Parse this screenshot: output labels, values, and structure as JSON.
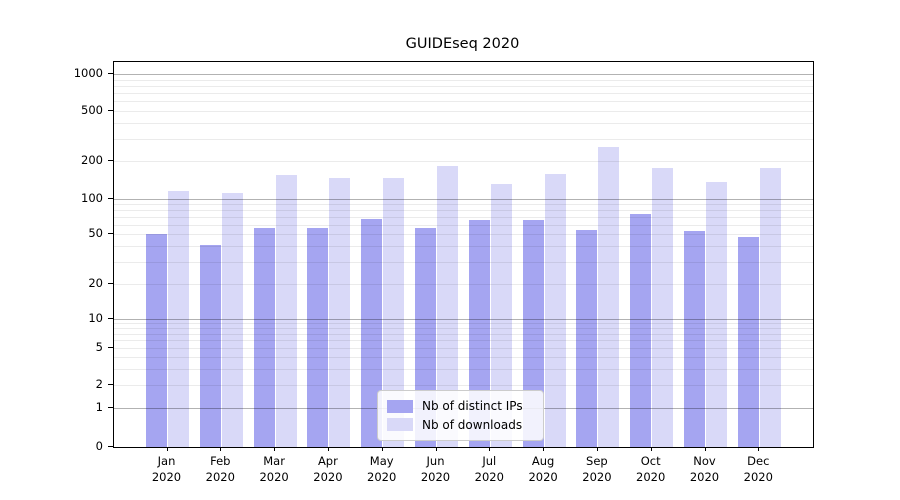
{
  "title": "GUIDEseq 2020",
  "legend": {
    "items": [
      {
        "label": "Nb of distinct IPs",
        "color": "#a5a5f1"
      },
      {
        "label": "Nb of downloads",
        "color": "#d9d9f8"
      }
    ]
  },
  "chart_data": {
    "type": "bar",
    "title": "GUIDEseq 2020",
    "yscale": "symlog",
    "grid": true,
    "legend_position": "lower center",
    "ylim": [
      0,
      1400
    ],
    "y_ticks": [
      0,
      1,
      2,
      5,
      10,
      20,
      50,
      100,
      200,
      500,
      1000
    ],
    "categories": [
      "Jan 2020",
      "Feb 2020",
      "Mar 2020",
      "Apr 2020",
      "May 2020",
      "Jun 2020",
      "Jul 2020",
      "Aug 2020",
      "Sep 2020",
      "Oct 2020",
      "Nov 2020",
      "Dec 2020"
    ],
    "series": [
      {
        "name": "Nb of distinct IPs",
        "color": "#a5a5f1",
        "values": [
          50,
          41,
          57,
          56,
          67,
          57,
          66,
          66,
          54,
          74,
          53,
          48
        ]
      },
      {
        "name": "Nb of downloads",
        "color": "#d9d9f8",
        "values": [
          115,
          112,
          154,
          146,
          147,
          183,
          130,
          157,
          260,
          176,
          137,
          176
        ]
      }
    ]
  }
}
